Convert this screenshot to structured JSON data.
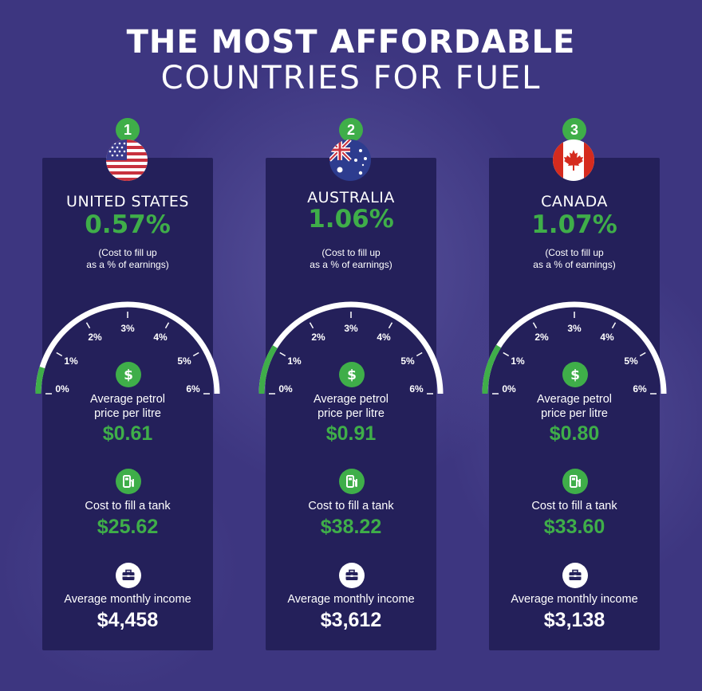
{
  "title": {
    "line1": "THE MOST AFFORDABLE",
    "line2": "COUNTRIES FOR FUEL"
  },
  "colors": {
    "background": "#3d3680",
    "card": "#24205a",
    "accent": "#3fae49",
    "text": "#ffffff"
  },
  "gauge": {
    "min": 0,
    "max": 6,
    "ticks": [
      "0%",
      "1%",
      "2%",
      "3%",
      "4%",
      "5%",
      "6%"
    ]
  },
  "countries": [
    {
      "rank": "1",
      "name": "UNITED STATES",
      "flag_icon": "us-flag-icon",
      "percent": "0.57%",
      "percent_value": 0.57,
      "percent_note_1": "(Cost to fill up",
      "percent_note_2": "as a % of earnings)",
      "petrol_label_1": "Average petrol",
      "petrol_label_2": "price per litre",
      "petrol_price": "$0.61",
      "tank_label": "Cost to fill a tank",
      "tank_cost": "$25.62",
      "income_label": "Average monthly income",
      "income": "$4,458"
    },
    {
      "rank": "2",
      "name": "AUSTRALIA",
      "flag_icon": "australia-flag-icon",
      "percent": "1.06%",
      "percent_value": 1.06,
      "percent_note_1": "(Cost to fill up",
      "percent_note_2": "as a % of earnings)",
      "petrol_label_1": "Average petrol",
      "petrol_label_2": "price per litre",
      "petrol_price": "$0.91",
      "tank_label": "Cost to fill a tank",
      "tank_cost": "$38.22",
      "income_label": "Average monthly income",
      "income": "$3,612"
    },
    {
      "rank": "3",
      "name": "CANADA",
      "flag_icon": "canada-flag-icon",
      "percent": "1.07%",
      "percent_value": 1.07,
      "percent_note_1": "(Cost to fill up",
      "percent_note_2": "as a % of earnings)",
      "petrol_label_1": "Average petrol",
      "petrol_label_2": "price per litre",
      "petrol_price": "$0.80",
      "tank_label": "Cost to fill a tank",
      "tank_cost": "$33.60",
      "income_label": "Average monthly income",
      "income": "$3,138"
    }
  ],
  "icons": {
    "petrol": "dollar-icon",
    "tank": "fuel-pump-icon",
    "income": "briefcase-icon"
  }
}
